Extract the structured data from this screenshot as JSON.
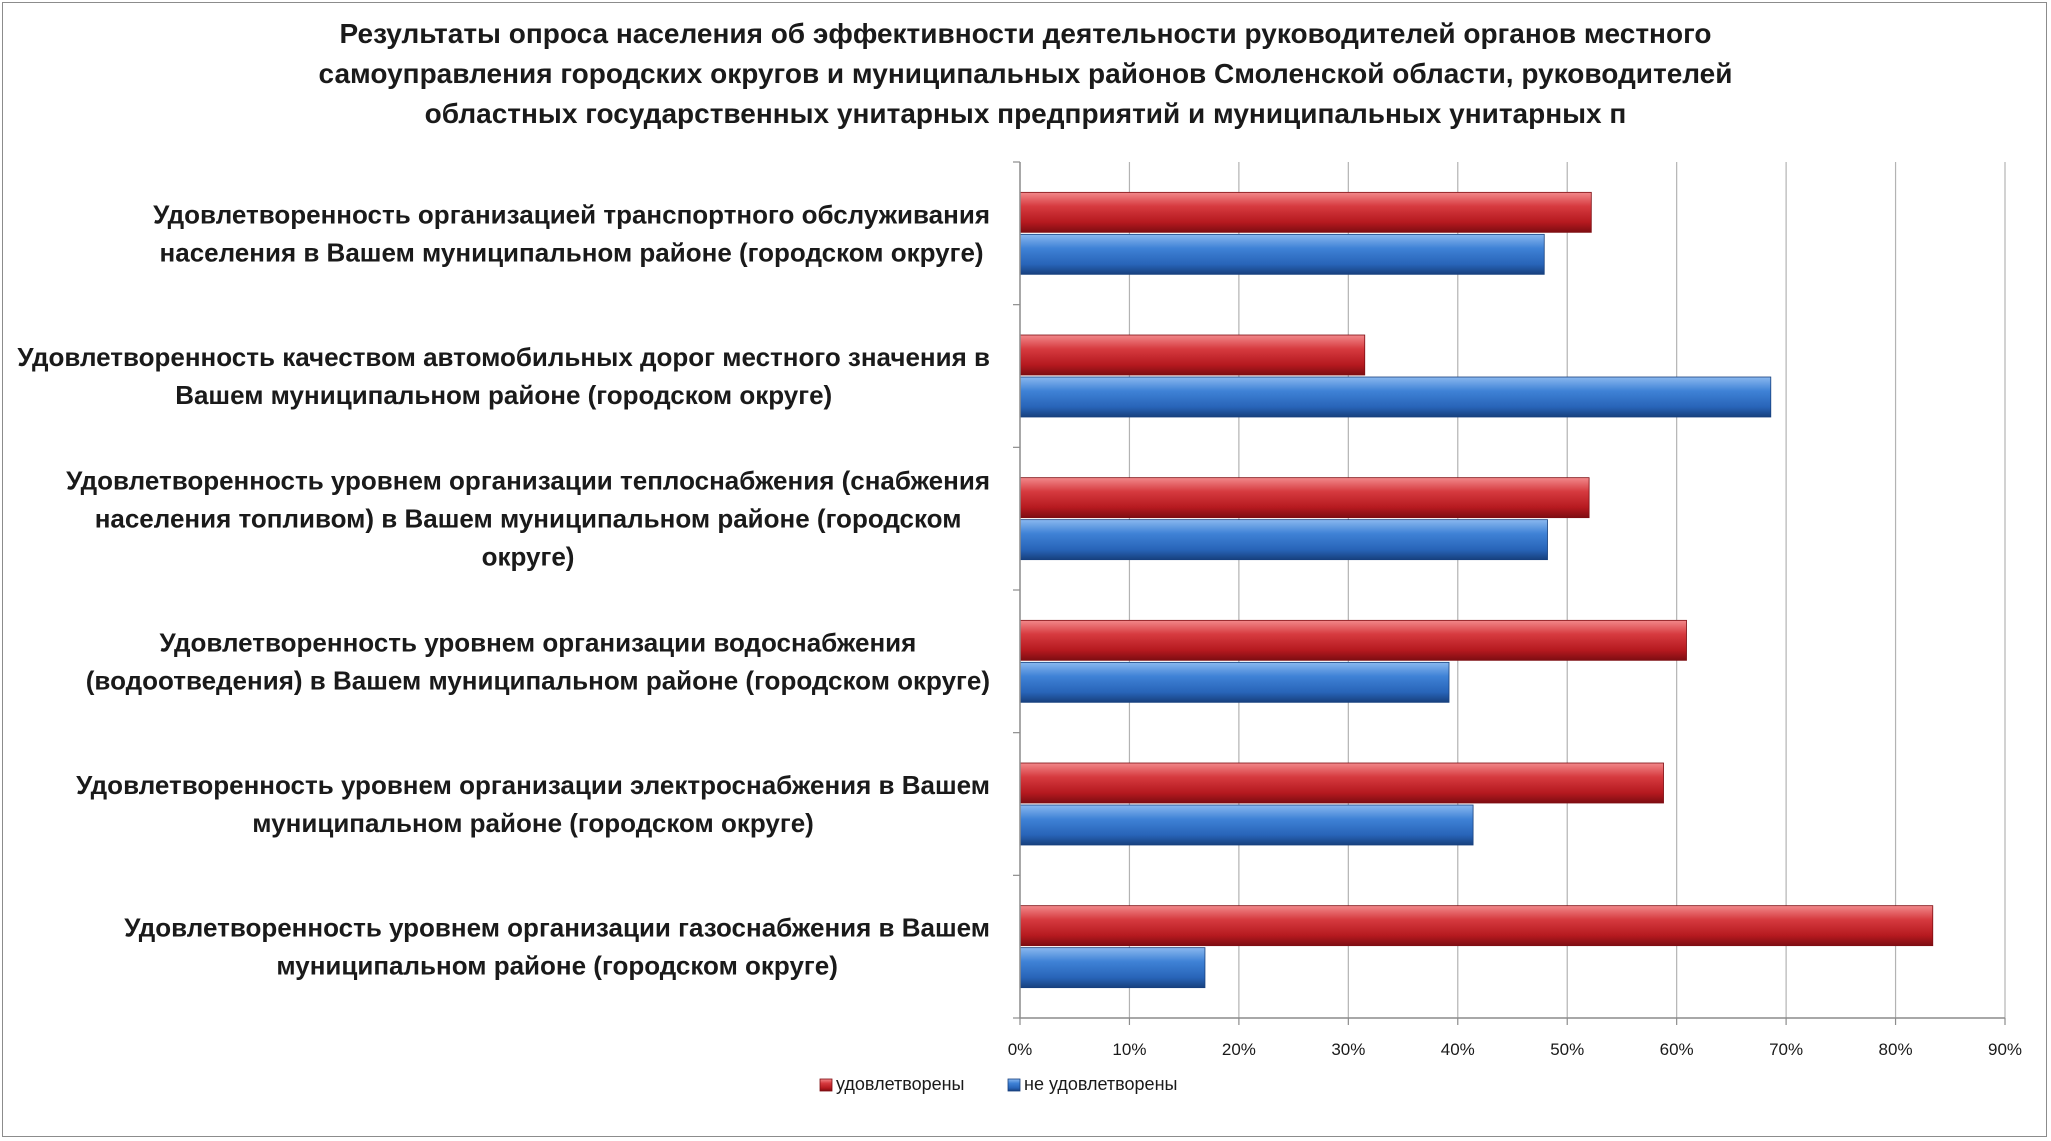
{
  "chart_data": {
    "type": "bar",
    "orientation": "horizontal",
    "title_lines": [
      "Результаты опроса населения об эффективности деятельности руководителей органов местного",
      "самоуправления городских округов и муниципальных районов Смоленской области, руководителей",
      "областных государственных унитарных предприятий и муниципальных унитарных п"
    ],
    "categories": [
      [
        "Удовлетворенность организацией транспортного обслуживания",
        "населения в Вашем муниципальном районе (городском округе)"
      ],
      [
        "Удовлетворенность качеством автомобильных дорог местного значения в",
        "Вашем муниципальном районе (городском округе)"
      ],
      [
        "Удовлетворенность уровнем организации теплоснабжения (снабжения",
        "населения топливом) в Вашем муниципальном районе (городском",
        "округе)"
      ],
      [
        "Удовлетворенность уровнем организации водоснабжения",
        "(водоотведения) в Вашем муниципальном районе (городском округе)"
      ],
      [
        "Удовлетворенность уровнем организации электроснабжения в Вашем",
        "муниципальном районе (городском округе)"
      ],
      [
        "Удовлетворенность уровнем организации газоснабжения в Вашем",
        "муниципальном районе (городском округе)"
      ]
    ],
    "series": [
      {
        "name": "удовлетворены",
        "color": "#c0262b",
        "values": [
          52.2,
          31.5,
          52.0,
          60.9,
          58.8,
          83.4
        ]
      },
      {
        "name": "не удовлетворены",
        "color": "#2f6fc4",
        "values": [
          47.9,
          68.6,
          48.2,
          39.2,
          41.4,
          16.9
        ]
      }
    ],
    "xlim": [
      0,
      90
    ],
    "xticks": [
      "0%",
      "10%",
      "20%",
      "30%",
      "40%",
      "50%",
      "60%",
      "70%",
      "80%",
      "90%"
    ],
    "grid": true,
    "legend_position": "bottom"
  }
}
